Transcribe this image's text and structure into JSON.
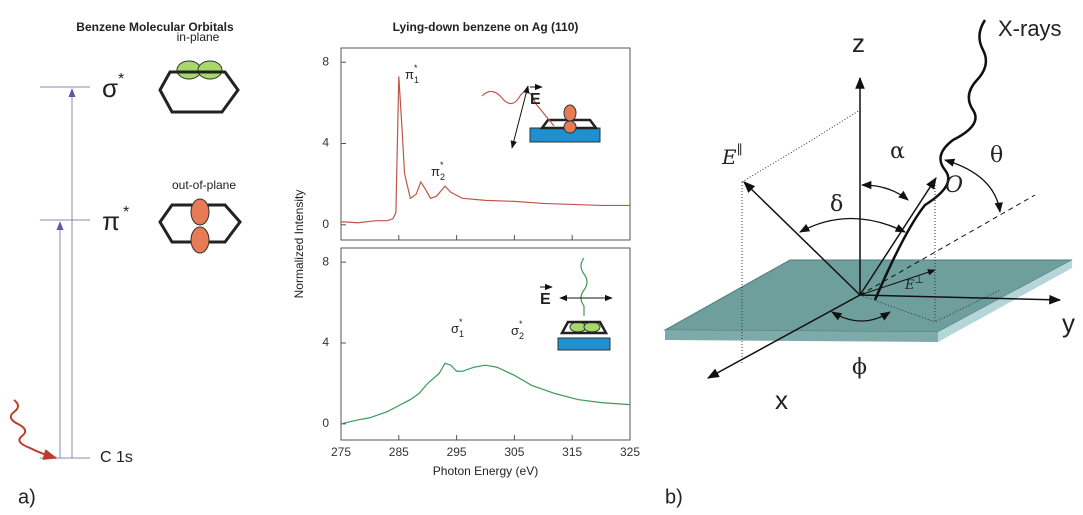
{
  "panel_a": {
    "label": "a)",
    "title": "Benzene Molecular Orbitals",
    "levels": [
      {
        "symbol": "σ",
        "sup": "*"
      },
      {
        "symbol": "π",
        "sup": "*"
      },
      {
        "symbol": "C 1s"
      }
    ],
    "orbitals": [
      "in-plane",
      "out-of-plane"
    ]
  },
  "chart_data": [
    {
      "type": "line",
      "title": "Lying-down benzene on Ag (110)",
      "ylabel": "Normalized Intensity",
      "x": [
        275,
        278,
        281,
        283,
        284,
        284.5,
        285,
        285.5,
        286,
        287,
        288,
        288.8,
        289.5,
        290.5,
        291.5,
        293,
        294,
        296,
        300,
        305,
        310,
        315,
        320,
        325
      ],
      "series": [
        {
          "color": "#c0554a",
          "values": [
            0.15,
            0.1,
            0.2,
            0.2,
            0.3,
            0.6,
            7.3,
            5.0,
            2.5,
            1.3,
            1.5,
            2.1,
            1.8,
            1.3,
            1.4,
            1.9,
            1.6,
            1.3,
            1.2,
            1.15,
            1.05,
            1.0,
            0.95,
            0.95
          ]
        }
      ],
      "xlim": [
        275,
        325
      ],
      "ylim": [
        -0.75,
        8.7
      ],
      "xticks": [
        275,
        285,
        295,
        305,
        315,
        325
      ],
      "yticks": [
        0,
        4,
        8
      ],
      "peak_labels": [
        {
          "symbol": "π",
          "sub": "1",
          "sup": "*"
        },
        {
          "symbol": "π",
          "sub": "2",
          "sup": "*"
        }
      ],
      "inset_label": "E"
    },
    {
      "type": "line",
      "xlabel": "Photon Energy (eV)",
      "x": [
        275,
        278,
        280,
        283,
        285,
        287,
        288.5,
        290,
        292,
        293,
        294,
        295,
        296,
        298,
        300,
        302,
        305,
        308,
        312,
        316,
        320,
        325
      ],
      "series": [
        {
          "color": "#3a9a5a",
          "values": [
            0,
            0.2,
            0.3,
            0.6,
            0.9,
            1.2,
            1.5,
            2.0,
            2.5,
            3.0,
            2.9,
            2.6,
            2.6,
            2.8,
            2.9,
            2.8,
            2.4,
            1.9,
            1.5,
            1.2,
            1.05,
            0.95
          ]
        }
      ],
      "xlim": [
        275,
        325
      ],
      "ylim": [
        -0.8,
        8.7
      ],
      "xticks": [
        275,
        285,
        295,
        305,
        315,
        325
      ],
      "yticks": [
        0,
        4,
        8
      ],
      "peak_labels": [
        {
          "symbol": "σ",
          "sub": "1",
          "sup": "*"
        },
        {
          "symbol": "σ",
          "sub": "2",
          "sup": "*"
        }
      ],
      "inset_label": "E"
    }
  ],
  "panel_b": {
    "label": "b)",
    "z": "z",
    "y": "y",
    "x": "x",
    "source": "X-rays",
    "e_parallel": {
      "symbol": "E",
      "sup": "∥"
    },
    "e_perp": {
      "symbol": "E",
      "sup": "⊥"
    },
    "o": "O",
    "alpha": "α",
    "theta": "θ",
    "delta": "δ",
    "phi": "ϕ"
  }
}
